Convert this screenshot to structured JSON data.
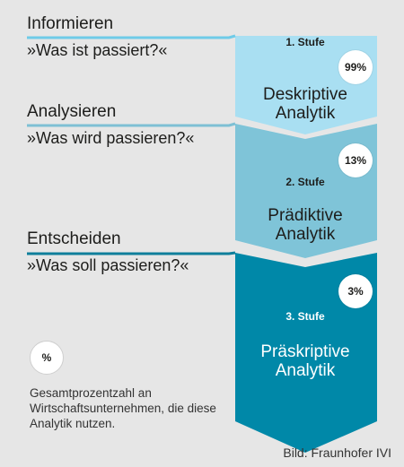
{
  "colors": {
    "background": "#e6e6e6",
    "stage1": "#a9dff2",
    "stage2": "#7fc4d8",
    "stage3": "#0088a8",
    "rule1": "#6fcbe8",
    "rule2": "#7ec0d4",
    "rule3": "#0f7f9b"
  },
  "stages": [
    {
      "category": "Informieren",
      "question": "»Was ist passiert?«",
      "title": "1. Stufe",
      "name_line1": "Deskriptive",
      "name_line2": "Analytik",
      "percent": "99%"
    },
    {
      "category": "Analysieren",
      "question": "»Was wird passieren?«",
      "title": "2. Stufe",
      "name_line1": "Prädiktive",
      "name_line2": "Analytik",
      "percent": "13%"
    },
    {
      "category": "Entscheiden",
      "question": "»Was soll passieren?«",
      "title": "3. Stufe",
      "name_line1": "Präskriptive",
      "name_line2": "Analytik",
      "percent": "3%"
    }
  ],
  "legend": {
    "symbol": "%",
    "text": "Gesamtprozentzahl an Wirtschaftsunternehmen, die diese Analytik nutzen."
  },
  "credit": "Bild: Fraunhofer IVI"
}
